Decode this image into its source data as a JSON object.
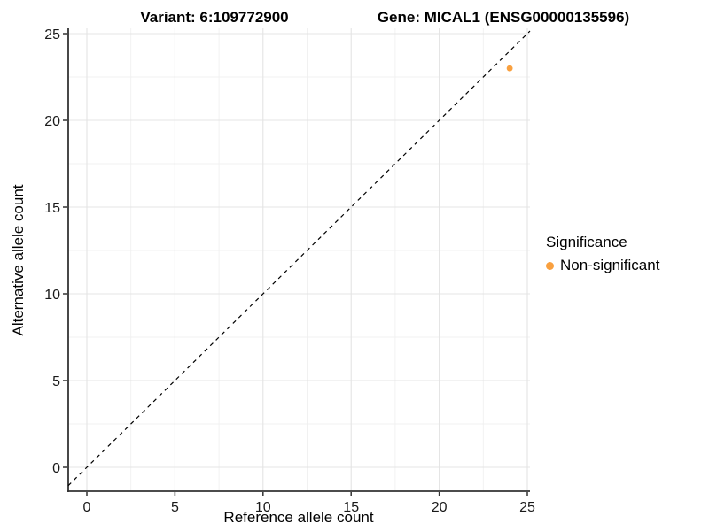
{
  "titles": {
    "left": "Variant: 6:109772900",
    "right": "Gene: MICAL1 (ENSG00000135596)"
  },
  "chart_data": {
    "type": "scatter",
    "title": "Variant: 6:109772900   Gene: MICAL1 (ENSG00000135596)",
    "xlabel": "Reference allele count",
    "ylabel": "Alternative allele count",
    "x_ticks": [
      0,
      5,
      10,
      15,
      20,
      25
    ],
    "y_ticks": [
      0,
      5,
      10,
      15,
      20,
      25
    ],
    "xlim": [
      -1.05,
      25.15
    ],
    "ylim": [
      -1.38,
      25.3
    ],
    "grid": "major+minor",
    "minor_step": 2.5,
    "points": [
      {
        "x": 24,
        "y": 23,
        "series": "Non-significant"
      }
    ],
    "series_colors": {
      "Non-significant": "#F9A03F"
    },
    "reference_line": {
      "equation": "y = x",
      "style": "dashed",
      "color": "#000000"
    },
    "legend_position": "right"
  },
  "legend": {
    "title": "Significance",
    "items": [
      {
        "label": "Non-significant",
        "color": "#F9A03F",
        "marker": "circle"
      }
    ]
  },
  "style": {
    "background": "#FFFFFF",
    "grid_major_color": "#E4E4E4",
    "grid_minor_color": "#F0F0F0",
    "axis_line_color": "#333333",
    "tick_label_color": "#1A1A1A"
  }
}
